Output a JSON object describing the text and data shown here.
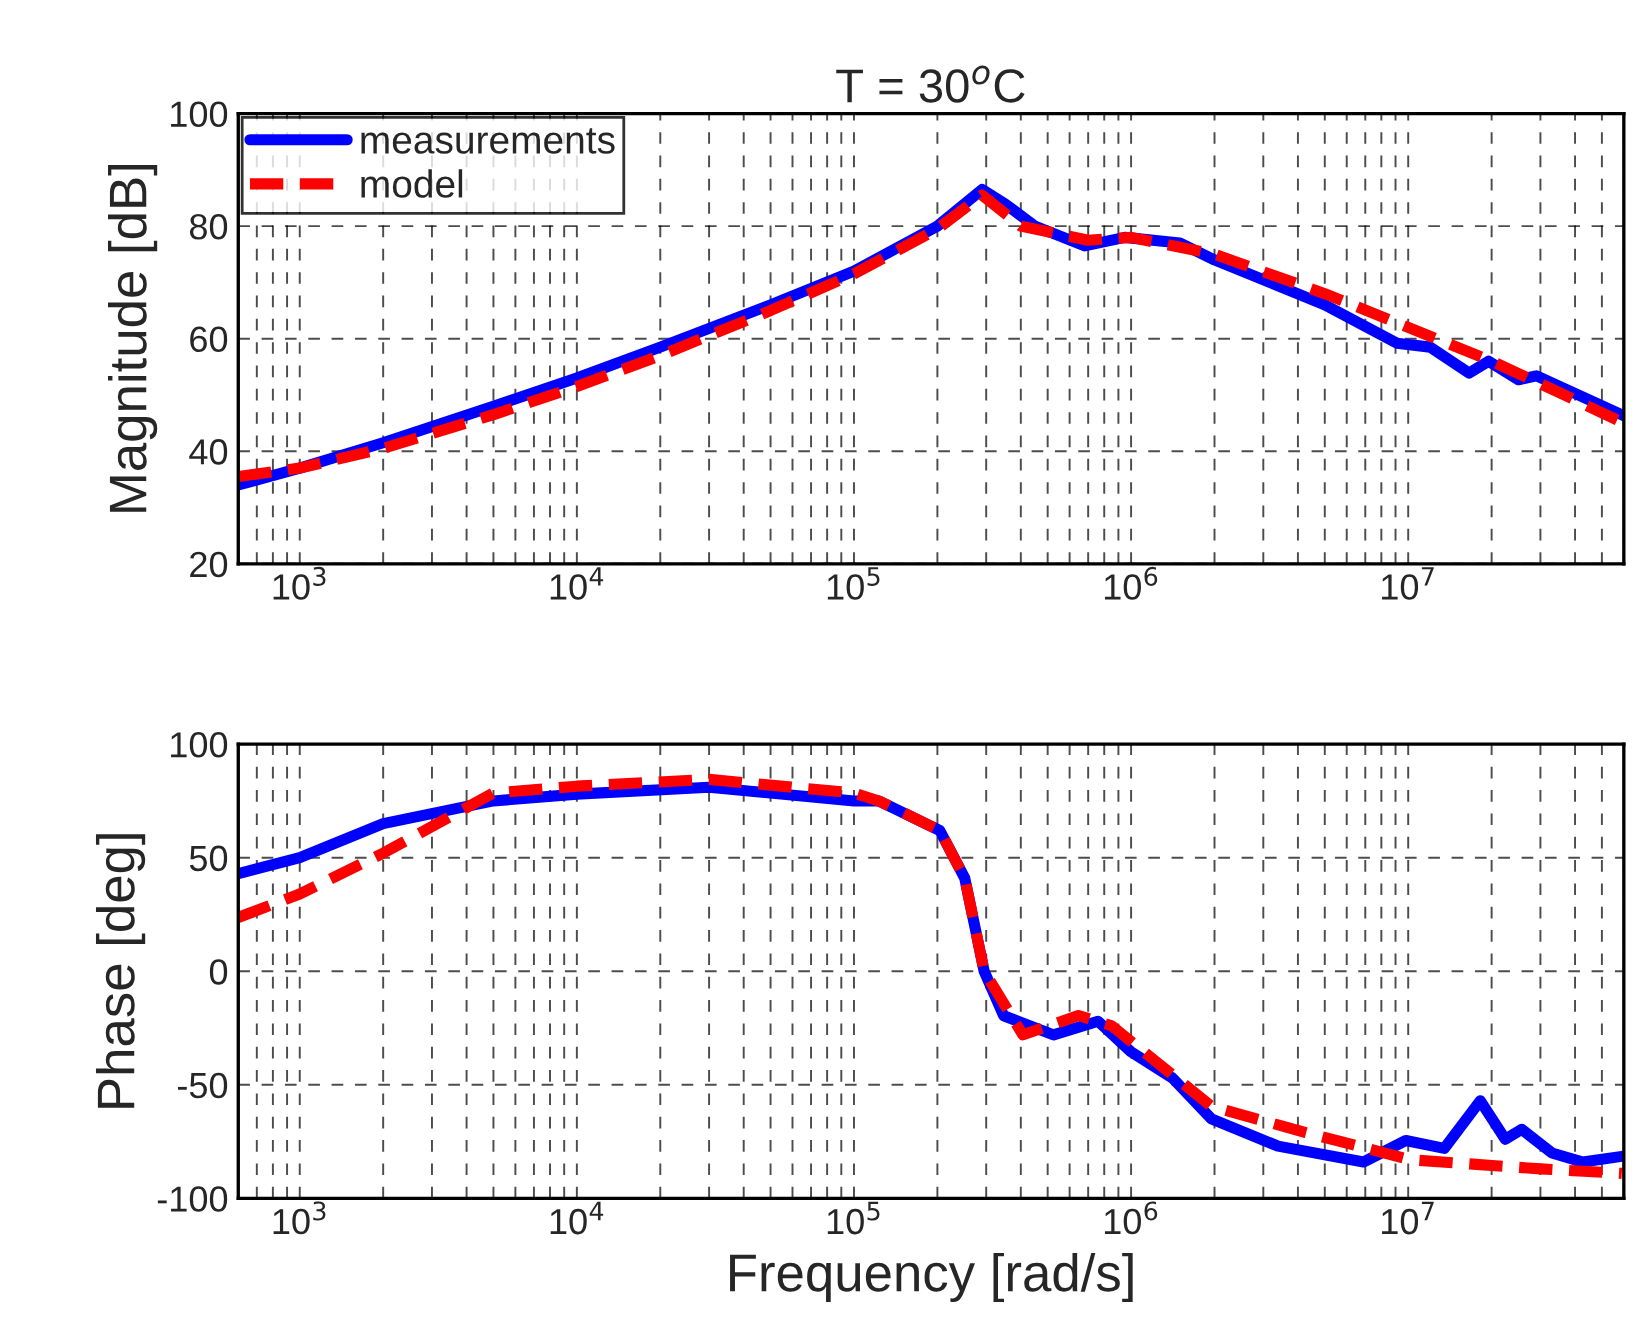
{
  "chart_data": [
    {
      "type": "line",
      "title": "T = 30$^{o}$C",
      "ylabel": "Magnitude [dB]",
      "log": "x",
      "grid": true,
      "legend": "top left",
      "xlim": [
        600,
        60000000
      ],
      "xticks": [
        {
          "value": 1000,
          "label": "10$^{3}$"
        },
        {
          "value": 10000,
          "label": "10$^{4}$"
        },
        {
          "value": 100000,
          "label": "10$^{5}$"
        },
        {
          "value": 1000000,
          "label": "10$^{6}$"
        },
        {
          "value": 10000000,
          "label": "10$^{7}$"
        }
      ],
      "ylim": [
        20,
        100
      ],
      "yticks": [
        20,
        40,
        60,
        80,
        100
      ],
      "series": [
        {
          "name": "measurements",
          "color": "#0000ff",
          "line_style": "solid",
          "x": [
            600,
            1000,
            2000,
            5000,
            10000,
            20000,
            50000,
            100000,
            200000,
            290000,
            350000,
            450000,
            680000,
            950000,
            1500000,
            2000000,
            5000000,
            9100000,
            12000000,
            16600000,
            19500000,
            25000000,
            29000000,
            60000000
          ],
          "values": [
            34,
            37,
            41.5,
            48,
            53,
            58.5,
            66,
            72,
            80,
            86.5,
            84,
            80,
            76.5,
            78,
            77,
            74,
            66,
            59.2,
            58.5,
            53.9,
            56,
            52.7,
            53.4,
            46.3
          ]
        },
        {
          "name": "model",
          "color": "#ff0000",
          "line_style": "dashed",
          "x": [
            600,
            1000,
            2000,
            5000,
            10000,
            20000,
            50000,
            100000,
            200000,
            290000,
            400000,
            700000,
            1000000,
            2000000,
            5000000,
            10000000,
            20000000,
            30000000,
            60000000
          ],
          "values": [
            35.5,
            37,
            40.5,
            46.5,
            51.5,
            57,
            65,
            71.5,
            79.5,
            85.5,
            80,
            77.5,
            78,
            75,
            68,
            62,
            56,
            52,
            45
          ]
        }
      ]
    },
    {
      "type": "line",
      "xlabel": "Frequency [rad/s]",
      "ylabel": "Phase [deg]",
      "log": "x",
      "grid": true,
      "xlim": [
        600,
        60000000
      ],
      "xticks": [
        {
          "value": 1000,
          "label": "10$^{3}$"
        },
        {
          "value": 10000,
          "label": "10$^{4}$"
        },
        {
          "value": 100000,
          "label": "10$^{5}$"
        },
        {
          "value": 1000000,
          "label": "10$^{6}$"
        },
        {
          "value": 10000000,
          "label": "10$^{7}$"
        }
      ],
      "ylim": [
        -100,
        100
      ],
      "yticks": [
        -100,
        -50,
        0,
        50,
        100
      ],
      "series": [
        {
          "color": "#0000ff",
          "line_style": "solid",
          "x": [
            600,
            1000,
            2000,
            5000,
            10000,
            30000,
            100000,
            123000,
            204000,
            251000,
            295000,
            347000,
            525000,
            760000,
            1000000,
            1410000,
            1950000,
            3390000,
            6900000,
            9800000,
            13500000,
            18200000,
            22400000,
            25700000,
            33000000,
            42700000,
            59000000
          ],
          "values": [
            43,
            50,
            65,
            75,
            78,
            81,
            75,
            75,
            62,
            41,
            0,
            -19.6,
            -28,
            -22,
            -35.5,
            -47,
            -65,
            -77,
            -84,
            -74.5,
            -78,
            -57,
            -74,
            -69.6,
            -80,
            -84,
            -81.5
          ]
        },
        {
          "color": "#ff0000",
          "line_style": "dashed",
          "x": [
            600,
            1000,
            2000,
            5000,
            10000,
            30000,
            100000,
            123000,
            204000,
            251000,
            295000,
            407000,
            646000,
            851000,
            1950000,
            4270000,
            10200000,
            30000000,
            59000000
          ],
          "values": [
            23.7,
            34,
            52,
            78.5,
            81.5,
            84.5,
            78.5,
            75,
            62,
            41,
            0,
            -28,
            -19.5,
            -24,
            -59.5,
            -71,
            -83,
            -87,
            -89
          ]
        }
      ]
    }
  ]
}
